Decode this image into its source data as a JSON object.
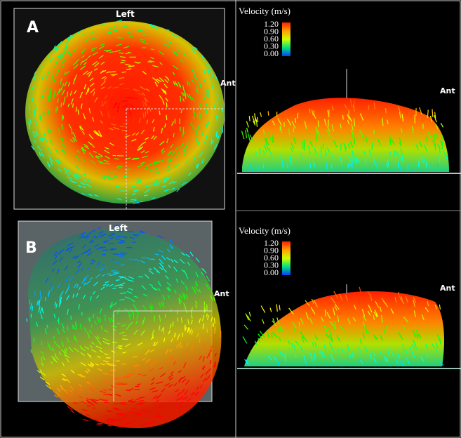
{
  "panels": [
    {
      "label": "A",
      "left_label": "Left",
      "ant_left": "Ant",
      "ant_right": "Ant",
      "colorbar": {
        "title": "Velocity (m/s)",
        "ticks": [
          "1.20",
          "0.90",
          "0.60",
          "0.30",
          "0.00"
        ]
      }
    },
    {
      "label": "B",
      "left_label": "Left",
      "ant_left": "Ant",
      "ant_right": "Ant",
      "colorbar": {
        "title": "Velocity (m/s)",
        "ticks": [
          "1.20",
          "0.90",
          "0.60",
          "0.30",
          "0.00"
        ]
      }
    }
  ]
}
